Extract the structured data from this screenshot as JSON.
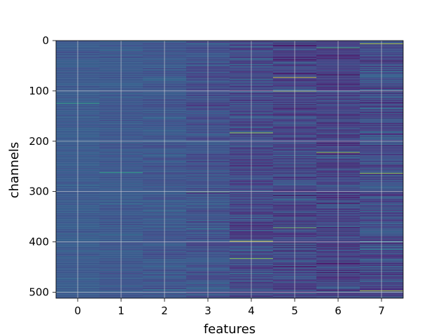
{
  "chart_data": {
    "type": "heatmap",
    "title": "",
    "xlabel": "features",
    "ylabel": "channels",
    "x_categories": [
      "0",
      "1",
      "2",
      "3",
      "4",
      "5",
      "6",
      "7"
    ],
    "x_ticks": [
      0,
      1,
      2,
      3,
      4,
      5,
      6,
      7
    ],
    "y_ticks": [
      0,
      100,
      200,
      300,
      400,
      500
    ],
    "xlim": [
      -0.5,
      7.5
    ],
    "ylim": [
      512,
      0
    ],
    "rows": 512,
    "columns": 8,
    "grid": true,
    "colormap": "viridis",
    "feature_profiles": [
      {
        "feature": "0",
        "mean": 0.28,
        "spread": 0.06
      },
      {
        "feature": "1",
        "mean": 0.27,
        "spread": 0.07
      },
      {
        "feature": "2",
        "mean": 0.26,
        "spread": 0.09
      },
      {
        "feature": "3",
        "mean": 0.24,
        "spread": 0.12
      },
      {
        "feature": "4",
        "mean": 0.21,
        "spread": 0.16
      },
      {
        "feature": "5",
        "mean": 0.2,
        "spread": 0.17
      },
      {
        "feature": "6",
        "mean": 0.19,
        "spread": 0.16
      },
      {
        "feature": "7",
        "mean": 0.22,
        "spread": 0.16
      }
    ],
    "highlights": [
      {
        "feature": "0",
        "channel": 124,
        "value": 0.62
      },
      {
        "feature": "1",
        "channel": 262,
        "value": 0.62
      },
      {
        "feature": "5",
        "channel": 73,
        "value": 0.98
      },
      {
        "feature": "5",
        "channel": 100,
        "value": 0.85
      },
      {
        "feature": "4",
        "channel": 183,
        "value": 0.9
      },
      {
        "feature": "6",
        "channel": 222,
        "value": 0.88
      },
      {
        "feature": "7",
        "channel": 263,
        "value": 0.88
      },
      {
        "feature": "7",
        "channel": 6,
        "value": 0.92
      },
      {
        "feature": "4",
        "channel": 398,
        "value": 0.92
      },
      {
        "feature": "5",
        "channel": 372,
        "value": 0.8
      },
      {
        "feature": "7",
        "channel": 497,
        "value": 0.92
      },
      {
        "feature": "3",
        "channel": 300,
        "value": 0.72
      },
      {
        "feature": "4",
        "channel": 433,
        "value": 0.85
      },
      {
        "feature": "6",
        "channel": 14,
        "value": 0.7
      }
    ]
  },
  "colors": {
    "background": "#ffffff",
    "grid": "#d9d9d9",
    "axis": "#000000"
  }
}
